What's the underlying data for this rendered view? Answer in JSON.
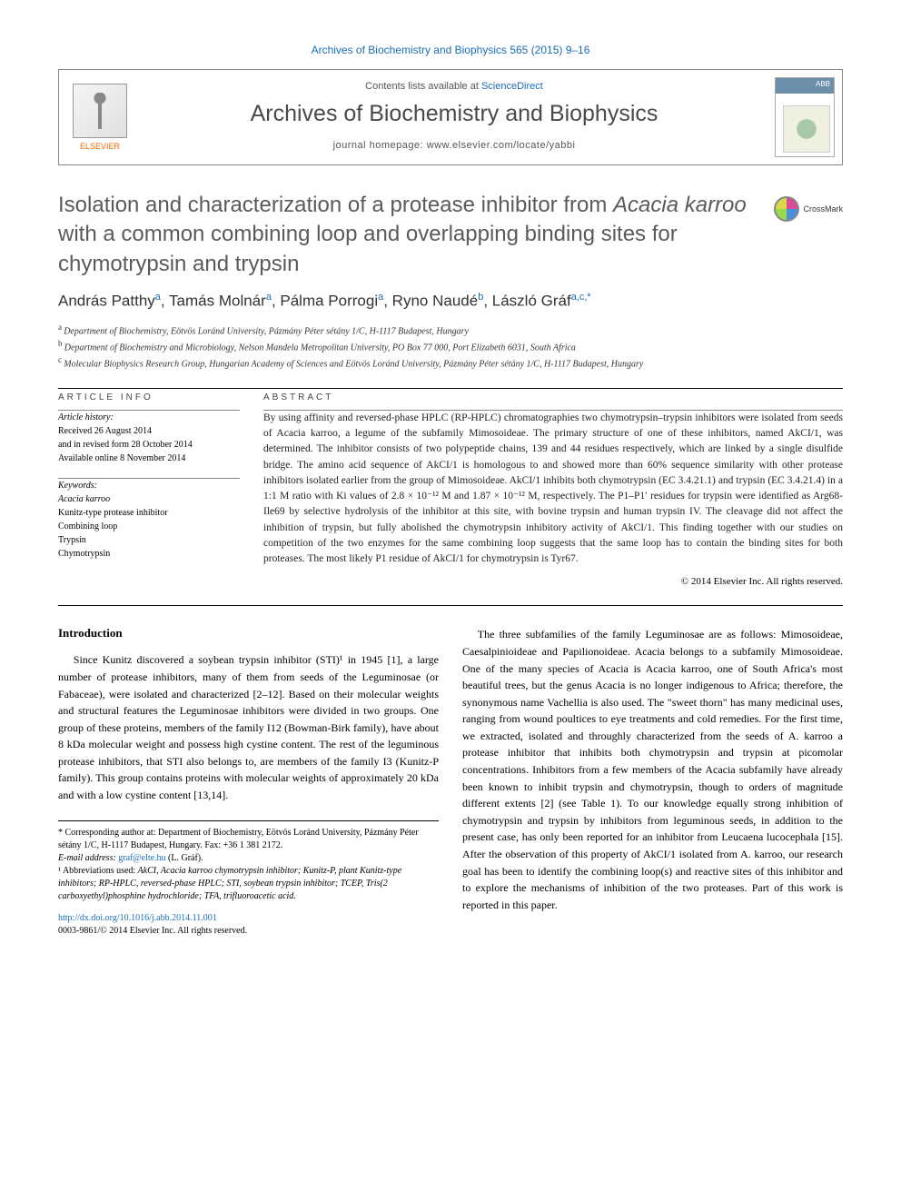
{
  "journal_ref": "Archives of Biochemistry and Biophysics 565 (2015) 9–16",
  "header": {
    "contents_prefix": "Contents lists available at ",
    "contents_link": "ScienceDirect",
    "journal_name": "Archives of Biochemistry and Biophysics",
    "homepage_prefix": "journal homepage: ",
    "homepage_url": "www.elsevier.com/locate/yabbi",
    "elsevier_label": "ELSEVIER",
    "cover_abbr": "ABB"
  },
  "crossmark_label": "CrossMark",
  "title_parts": {
    "p1": "Isolation and characterization of a protease inhibitor from ",
    "p2_italic": "Acacia karroo",
    "p3": " with a common combining loop and overlapping binding sites for chymotrypsin and trypsin"
  },
  "authors_html_parts": [
    {
      "text": "András Patthy",
      "sup": "a"
    },
    {
      "text": ", Tamás Molnár",
      "sup": "a"
    },
    {
      "text": ", Pálma Porrogi",
      "sup": "a"
    },
    {
      "text": ", Ryno Naudé",
      "sup": "b"
    },
    {
      "text": ", László Gráf",
      "sup": "a,c,*"
    }
  ],
  "affiliations": [
    {
      "sup": "a",
      "text": "Department of Biochemistry, Eötvös Loránd University, Pázmány Péter sétány 1/C, H-1117 Budapest, Hungary"
    },
    {
      "sup": "b",
      "text": "Department of Biochemistry and Microbiology, Nelson Mandela Metropolitan University, PO Box 77 000, Port Elizabeth 6031, South Africa"
    },
    {
      "sup": "c",
      "text": "Molecular Biophysics Research Group, Hungarian Academy of Sciences and Eötvös Loránd University, Pázmány Péter sétány 1/C, H-1117 Budapest, Hungary"
    }
  ],
  "article_info": {
    "heading": "ARTICLE INFO",
    "history_label": "Article history:",
    "history_lines": [
      "Received 26 August 2014",
      "and in revised form 28 October 2014",
      "Available online 8 November 2014"
    ],
    "keywords_label": "Keywords:",
    "keywords": [
      "Acacia karroo",
      "Kunitz-type protease inhibitor",
      "Combining loop",
      "Trypsin",
      "Chymotrypsin"
    ]
  },
  "abstract_heading": "ABSTRACT",
  "abstract_body": "By using affinity and reversed-phase HPLC (RP-HPLC) chromatographies two chymotrypsin–trypsin inhibitors were isolated from seeds of Acacia karroo, a legume of the subfamily Mimosoideae. The primary structure of one of these inhibitors, named AkCI/1, was determined. The inhibitor consists of two polypeptide chains, 139 and 44 residues respectively, which are linked by a single disulfide bridge. The amino acid sequence of AkCI/1 is homologous to and showed more than 60% sequence similarity with other protease inhibitors isolated earlier from the group of Mimosoideae. AkCI/1 inhibits both chymotrypsin (EC 3.4.21.1) and trypsin (EC 3.4.21.4) in a 1:1 M ratio with Ki values of 2.8 × 10⁻¹² M and 1.87 × 10⁻¹² M, respectively. The P1–P1′ residues for trypsin were identified as Arg68-Ile69 by selective hydrolysis of the inhibitor at this site, with bovine trypsin and human trypsin IV. The cleavage did not affect the inhibition of trypsin, but fully abolished the chymotrypsin inhibitory activity of AkCI/1. This finding together with our studies on competition of the two enzymes for the same combining loop suggests that the same loop has to contain the binding sites for both proteases. The most likely P1 residue of AkCI/1 for chymotrypsin is Tyr67.",
  "abstract_copyright": "© 2014 Elsevier Inc. All rights reserved.",
  "intro_heading": "Introduction",
  "intro_col1": "Since Kunitz discovered a soybean trypsin inhibitor (STI)¹ in 1945 [1], a large number of protease inhibitors, many of them from seeds of the Leguminosae (or Fabaceae), were isolated and characterized [2–12]. Based on their molecular weights and structural features the Leguminosae inhibitors were divided in two groups. One group of these proteins, members of the family I12 (Bowman-Birk family), have about 8 kDa molecular weight and possess high cystine content. The rest of the leguminous protease inhibitors, that STI also belongs to, are members of the family I3 (Kunitz-P family). This group contains proteins with molecular weights of approximately 20 kDa and with a low cystine content [13,14].",
  "intro_col2": "The three subfamilies of the family Leguminosae are as follows: Mimosoideae, Caesalpinioideae and Papilionoideae. Acacia belongs to a subfamily Mimosoideae. One of the many species of Acacia is Acacia karroo, one of South Africa's most beautiful trees, but the genus Acacia is no longer indigenous to Africa; therefore, the synonymous name Vachellia is also used. The \"sweet thorn\" has many medicinal uses, ranging from wound poultices to eye treatments and cold remedies. For the first time, we extracted, isolated and throughly characterized from the seeds of A. karroo a protease inhibitor that inhibits both chymotrypsin and trypsin at picomolar concentrations. Inhibitors from a few members of the Acacia subfamily have already been known to inhibit trypsin and chymotrypsin, though to orders of magnitude different extents [2] (see Table 1). To our knowledge equally strong inhibition of chymotrypsin and trypsin by inhibitors from leguminous seeds, in addition to the present case, has only been reported for an inhibitor from Leucaena lucocephala [15]. After the observation of this property of AkCI/1 isolated from A. karroo, our research goal has been to identify the combining loop(s) and reactive sites of this inhibitor and to explore the mechanisms of inhibition of the two proteases. Part of this work is reported in this paper.",
  "footnotes": {
    "corr": "* Corresponding author at: Department of Biochemistry, Eötvös Loránd University, Pázmány Péter sétány 1/C, H-1117 Budapest, Hungary. Fax: +36 1 381 2172.",
    "email_label": "E-mail address: ",
    "email": "graf@elte.hu",
    "email_suffix": " (L. Gráf).",
    "abbr_label": "¹ Abbreviations used:",
    "abbr_text": " AkCI, Acacia karroo chymotrypsin inhibitor; Kunitz-P, plant Kunitz-type inhibitors; RP-HPLC, reversed-phase HPLC; STI, soybean trypsin inhibitor; TCEP, Tris(2 carboxyethyl)phosphine hydrochloride; TFA, trifluoroacetic acid."
  },
  "doi": {
    "url": "http://dx.doi.org/10.1016/j.abb.2014.11.001",
    "issn_line": "0003-9861/© 2014 Elsevier Inc. All rights reserved."
  },
  "colors": {
    "link": "#1a6db5",
    "elsevier_orange": "#ff6600",
    "text": "#000000",
    "title_gray": "#5a5a5a"
  }
}
